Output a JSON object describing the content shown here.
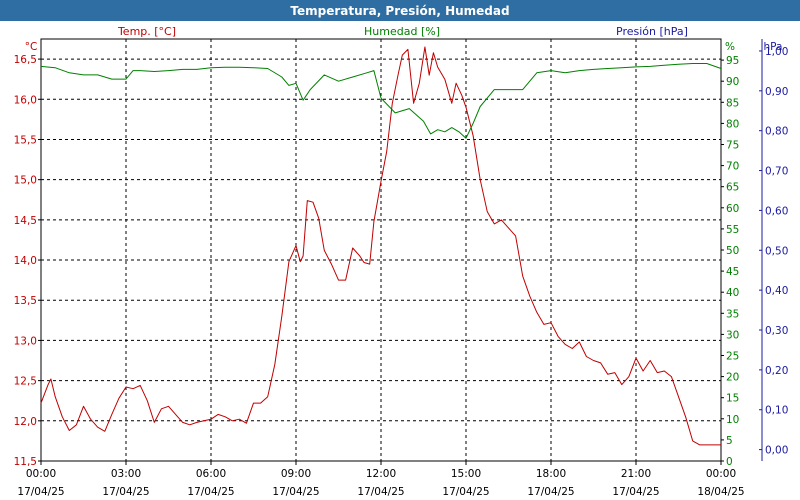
{
  "window": {
    "title": "Temperatura, Presión, Humedad"
  },
  "colors": {
    "title_bg": "#2f6ea2",
    "temperature": "#c00000",
    "humidity": "#008000",
    "pressure": "#1a1aa0",
    "grid": "#000000",
    "text": "#000000"
  },
  "chart_data": {
    "type": "line",
    "headers": {
      "temperature": "Temp. [°C]",
      "humidity": "Humedad [%]",
      "pressure": "Presión [hPa]"
    },
    "axes": {
      "temperature": {
        "unit": "°C",
        "range": [
          11.5,
          16.75
        ],
        "ticks": [
          "11,5",
          "12,0",
          "12,5",
          "13,0",
          "13,5",
          "14,0",
          "14,5",
          "15,0",
          "15,5",
          "16,0",
          "16,5"
        ],
        "tick_values": [
          11.5,
          12.0,
          12.5,
          13.0,
          13.5,
          14.0,
          14.5,
          15.0,
          15.5,
          16.0,
          16.5
        ]
      },
      "humidity": {
        "unit": "%",
        "range": [
          0,
          100
        ],
        "ticks": [
          "0",
          "5",
          "10",
          "15",
          "20",
          "25",
          "30",
          "35",
          "40",
          "45",
          "50",
          "55",
          "60",
          "65",
          "70",
          "75",
          "80",
          "85",
          "90",
          "95"
        ],
        "tick_values": [
          0,
          5,
          10,
          15,
          20,
          25,
          30,
          35,
          40,
          45,
          50,
          55,
          60,
          65,
          70,
          75,
          80,
          85,
          90,
          95
        ]
      },
      "pressure": {
        "unit": "hPa",
        "range": [
          -0.0286,
          1.03
        ],
        "ticks": [
          "0,00",
          "0,10",
          "0,20",
          "0,30",
          "0,40",
          "0,50",
          "0,60",
          "0,70",
          "0,80",
          "0,90",
          "1,00"
        ],
        "tick_values": [
          0,
          0.1,
          0.2,
          0.3,
          0.4,
          0.5,
          0.6,
          0.7,
          0.8,
          0.9,
          1.0
        ]
      },
      "x": {
        "range_hours": [
          0,
          24
        ],
        "tick_hours": [
          0,
          3,
          6,
          9,
          12,
          15,
          18,
          21,
          24
        ],
        "tick_times": [
          "00:00",
          "03:00",
          "06:00",
          "09:00",
          "12:00",
          "15:00",
          "18:00",
          "21:00",
          "00:00"
        ],
        "tick_dates": [
          "17/04/25",
          "17/04/25",
          "17/04/25",
          "17/04/25",
          "17/04/25",
          "17/04/25",
          "17/04/25",
          "17/04/25",
          "18/04/25"
        ]
      }
    },
    "grid": true,
    "series": [
      {
        "key": "temperature",
        "axis": "temperature",
        "x": [
          0,
          0.25,
          0.35,
          0.5,
          0.75,
          1.0,
          1.25,
          1.5,
          1.75,
          2.0,
          2.25,
          2.5,
          2.75,
          3.0,
          3.25,
          3.5,
          3.75,
          4.0,
          4.25,
          4.5,
          4.75,
          5.0,
          5.25,
          5.5,
          5.75,
          6.0,
          6.25,
          6.5,
          6.75,
          7.0,
          7.25,
          7.5,
          7.75,
          8.0,
          8.25,
          8.5,
          8.75,
          9.0,
          9.15,
          9.25,
          9.4,
          9.6,
          9.8,
          10.0,
          10.25,
          10.5,
          10.75,
          11.0,
          11.25,
          11.4,
          11.6,
          11.75,
          12.0,
          12.2,
          12.4,
          12.6,
          12.75,
          12.95,
          13.15,
          13.35,
          13.55,
          13.7,
          13.85,
          14.0,
          14.25,
          14.5,
          14.65,
          14.85,
          15.0,
          15.25,
          15.5,
          15.75,
          16.0,
          16.25,
          16.5,
          16.75,
          17.0,
          17.25,
          17.5,
          17.75,
          18.0,
          18.25,
          18.5,
          18.75,
          19.0,
          19.25,
          19.5,
          19.75,
          20.0,
          20.25,
          20.5,
          20.75,
          21.0,
          21.25,
          21.5,
          21.75,
          22.0,
          22.25,
          22.5,
          22.75,
          23.0,
          23.25,
          23.5,
          23.75,
          24.0
        ],
        "values": [
          12.22,
          12.45,
          12.52,
          12.3,
          12.05,
          11.88,
          11.95,
          12.18,
          12.02,
          11.92,
          11.87,
          12.08,
          12.28,
          12.42,
          12.4,
          12.44,
          12.25,
          11.98,
          12.15,
          12.18,
          12.08,
          11.98,
          11.95,
          11.98,
          12.0,
          12.02,
          12.08,
          12.05,
          12.0,
          12.02,
          11.97,
          12.22,
          12.22,
          12.3,
          12.7,
          13.3,
          13.98,
          14.18,
          13.98,
          14.05,
          14.74,
          14.72,
          14.52,
          14.12,
          13.95,
          13.75,
          13.75,
          14.15,
          14.05,
          13.97,
          13.95,
          14.48,
          14.98,
          15.35,
          15.95,
          16.3,
          16.55,
          16.62,
          15.95,
          16.2,
          16.65,
          16.3,
          16.58,
          16.4,
          16.25,
          15.95,
          16.2,
          16.05,
          15.9,
          15.55,
          15.0,
          14.6,
          14.45,
          14.5,
          14.4,
          14.3,
          13.8,
          13.55,
          13.35,
          13.2,
          13.22,
          13.05,
          12.95,
          12.9,
          12.98,
          12.8,
          12.75,
          12.72,
          12.58,
          12.6,
          12.45,
          12.55,
          12.78,
          12.62,
          12.75,
          12.6,
          12.62,
          12.55,
          12.3,
          12.05,
          11.75,
          11.7,
          11.7,
          11.7,
          11.7
        ],
        "note_end": "values after 23.0h hold near 11.72"
      },
      {
        "key": "humidity",
        "axis": "humidity",
        "x": [
          0,
          0.5,
          1.0,
          1.5,
          2.0,
          2.5,
          2.75,
          3.0,
          3.25,
          3.5,
          4.0,
          4.5,
          5.0,
          5.5,
          6.0,
          6.5,
          7.0,
          7.5,
          8.0,
          8.5,
          8.75,
          9.0,
          9.25,
          9.5,
          10.0,
          10.5,
          11.0,
          11.5,
          11.75,
          12.0,
          12.5,
          13.0,
          13.5,
          13.75,
          14.0,
          14.25,
          14.5,
          14.75,
          15.0,
          15.25,
          15.5,
          16.0,
          16.5,
          17.0,
          17.5,
          18.0,
          18.5,
          19.0,
          19.5,
          20.0,
          20.5,
          21.0,
          21.5,
          22.0,
          22.5,
          23.0,
          23.5,
          24.0
        ],
        "values": [
          93.5,
          93.2,
          92.0,
          91.5,
          91.5,
          90.5,
          90.5,
          90.5,
          92.5,
          92.5,
          92.3,
          92.5,
          92.8,
          92.8,
          93.2,
          93.3,
          93.3,
          93.2,
          93.0,
          91.0,
          89.0,
          89.5,
          85.5,
          88.0,
          91.5,
          90.0,
          91.0,
          92.0,
          92.5,
          86.0,
          82.5,
          83.5,
          80.5,
          77.5,
          78.5,
          78.0,
          79.0,
          78.0,
          76.5,
          80.0,
          84.0,
          88.0,
          88.0,
          88.0,
          92.0,
          92.5,
          92.0,
          92.5,
          92.8,
          93.0,
          93.2,
          93.4,
          93.5,
          93.8,
          94.0,
          94.2,
          94.2,
          93.0
        ]
      },
      {
        "key": "pressure",
        "axis": "pressure",
        "x": [],
        "values": []
      }
    ]
  }
}
